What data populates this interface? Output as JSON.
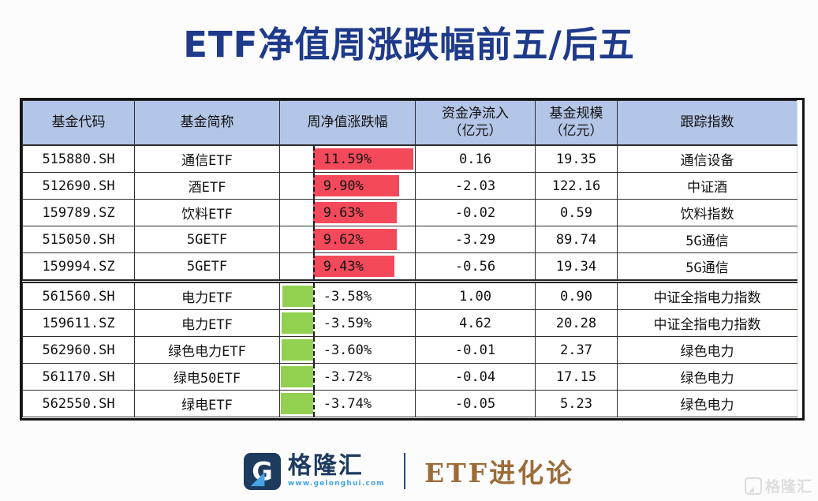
{
  "title": "ETF净值周涨跌幅前五/后五",
  "colors": {
    "title_navy": "#1e3a8a",
    "header_bg": "#b4c6e7",
    "positive_bar": "#f4495a",
    "negative_bar": "#92d050",
    "brand_brown": "#9c6b38",
    "brand_navy": "#1d3a5f",
    "brand_lightblue": "#45a5e5"
  },
  "table": {
    "headers": [
      {
        "line1": "基金代码",
        "line2": ""
      },
      {
        "line1": "基金简称",
        "line2": ""
      },
      {
        "line1": "周净值涨跌幅",
        "line2": ""
      },
      {
        "line1": "资金净流入",
        "line2": "（亿元）"
      },
      {
        "line1": "基金规模",
        "line2": "（亿元）"
      },
      {
        "line1": "跟踪指数",
        "line2": ""
      }
    ],
    "group_break_index": 5,
    "rows": [
      {
        "code": "515880.SH",
        "name": "通信ETF",
        "change_label": "11.59%",
        "change": 11.59,
        "inflow": "0.16",
        "scale": "19.35",
        "index": "通信设备"
      },
      {
        "code": "512690.SH",
        "name": "酒ETF",
        "change_label": "9.90%",
        "change": 9.9,
        "inflow": "-2.03",
        "scale": "122.16",
        "index": "中证酒"
      },
      {
        "code": "159789.SZ",
        "name": "饮料ETF",
        "change_label": "9.63%",
        "change": 9.63,
        "inflow": "-0.02",
        "scale": "0.59",
        "index": "饮料指数"
      },
      {
        "code": "515050.SH",
        "name": "5GETF",
        "change_label": "9.62%",
        "change": 9.62,
        "inflow": "-3.29",
        "scale": "89.74",
        "index": "5G通信"
      },
      {
        "code": "159994.SZ",
        "name": "5GETF",
        "change_label": "9.43%",
        "change": 9.43,
        "inflow": "-0.56",
        "scale": "19.34",
        "index": "5G通信"
      },
      {
        "code": "561560.SH",
        "name": "电力ETF",
        "change_label": "-3.58%",
        "change": -3.58,
        "inflow": "1.00",
        "scale": "0.90",
        "index": "中证全指电力指数"
      },
      {
        "code": "159611.SZ",
        "name": "电力ETF",
        "change_label": "-3.59%",
        "change": -3.59,
        "inflow": "4.62",
        "scale": "20.28",
        "index": "中证全指电力指数"
      },
      {
        "code": "562960.SH",
        "name": "绿色电力ETF",
        "change_label": "-3.60%",
        "change": -3.6,
        "inflow": "-0.01",
        "scale": "2.37",
        "index": "绿色电力"
      },
      {
        "code": "561170.SH",
        "name": "绿电50ETF",
        "change_label": "-3.72%",
        "change": -3.72,
        "inflow": "-0.04",
        "scale": "17.15",
        "index": "绿色电力"
      },
      {
        "code": "562550.SH",
        "name": "绿电ETF",
        "change_label": "-3.74%",
        "change": -3.74,
        "inflow": "-0.05",
        "scale": "5.23",
        "index": "绿色电力"
      }
    ]
  },
  "footer": {
    "logo_text": "格隆汇",
    "logo_url": "www.gelonghui.com",
    "brand": "ETF进化论"
  },
  "watermark": "格隆汇",
  "chart_data": {
    "type": "table",
    "title": "ETF净值周涨跌幅前五/后五",
    "columns": [
      "基金代码",
      "基金简称",
      "周净值涨跌幅",
      "资金净流入（亿元）",
      "基金规模（亿元）",
      "跟踪指数"
    ],
    "rows": [
      [
        "515880.SH",
        "通信ETF",
        11.59,
        0.16,
        19.35,
        "通信设备"
      ],
      [
        "512690.SH",
        "酒ETF",
        9.9,
        -2.03,
        122.16,
        "中证酒"
      ],
      [
        "159789.SZ",
        "饮料ETF",
        9.63,
        -0.02,
        0.59,
        "饮料指数"
      ],
      [
        "515050.SH",
        "5GETF",
        9.62,
        -3.29,
        89.74,
        "5G通信"
      ],
      [
        "159994.SZ",
        "5GETF",
        9.43,
        -0.56,
        19.34,
        "5G通信"
      ],
      [
        "561560.SH",
        "电力ETF",
        -3.58,
        1.0,
        0.9,
        "中证全指电力指数"
      ],
      [
        "159611.SZ",
        "电力ETF",
        -3.59,
        4.62,
        20.28,
        "中证全指电力指数"
      ],
      [
        "562960.SH",
        "绿色电力ETF",
        -3.6,
        -0.01,
        2.37,
        "绿色电力"
      ],
      [
        "561170.SH",
        "绿电50ETF",
        -3.72,
        -0.04,
        17.15,
        "绿色电力"
      ],
      [
        "562550.SH",
        "绿电ETF",
        -3.74,
        -0.05,
        5.23,
        "绿色电力"
      ]
    ],
    "notes": "周净值涨跌幅 column rendered as in-cell data bars: red bars = positive weekly change (top 5), green bars = negative weekly change (bottom 5); dashed vertical line marks the zero axis; double rule separates top-5 and bottom-5 groups."
  }
}
